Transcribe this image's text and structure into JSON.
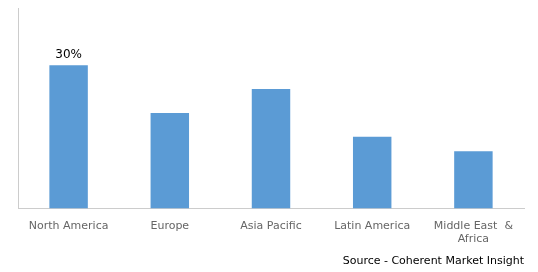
{
  "chart_data": {
    "type": "bar",
    "categories": [
      "North America",
      "Europe",
      "Asia Pacific",
      "Latin America",
      "Middle East  &\nAfrica"
    ],
    "values": [
      30,
      20,
      25,
      15,
      12
    ],
    "color": "#5B9BD5",
    "ylim": [
      0,
      42
    ],
    "grid": false,
    "tick_labels": "x",
    "annotations": [
      {
        "text": "30%",
        "category": "North America"
      }
    ],
    "source": "Source - Coherent Market Insight"
  }
}
